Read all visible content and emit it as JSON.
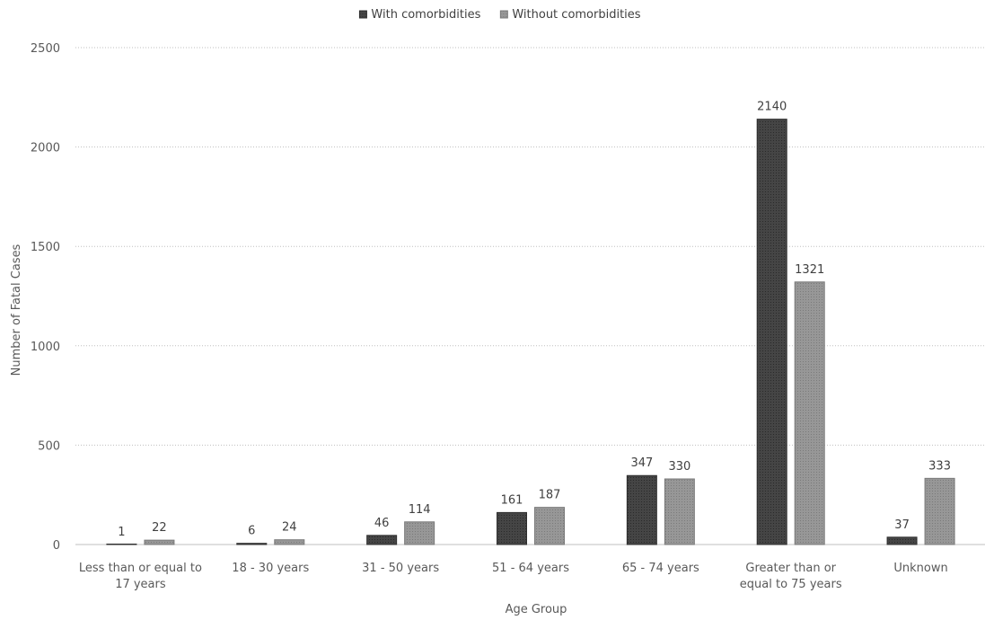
{
  "chart_data": {
    "type": "bar",
    "title": "",
    "xlabel": "Age Group",
    "ylabel": "Number of Fatal Cases",
    "ylim": [
      0,
      2500
    ],
    "yticks": [
      0,
      500,
      1000,
      1500,
      2000,
      2500
    ],
    "grid": true,
    "legend_position": "top-center",
    "categories": [
      [
        "Less than or equal to",
        "17 years"
      ],
      [
        "18 - 30 years"
      ],
      [
        "31 - 50 years"
      ],
      [
        "51 - 64 years"
      ],
      [
        "65 - 74 years"
      ],
      [
        "Greater than or",
        "equal to 75 years"
      ],
      [
        "Unknown"
      ]
    ],
    "series": [
      {
        "name": "With comorbidities",
        "color": "#3a3a3a",
        "values": [
          1,
          6,
          46,
          161,
          347,
          2140,
          37
        ]
      },
      {
        "name": "Without comorbidities",
        "color": "#8c8c8c",
        "values": [
          22,
          24,
          114,
          187,
          330,
          1321,
          333
        ]
      }
    ]
  }
}
